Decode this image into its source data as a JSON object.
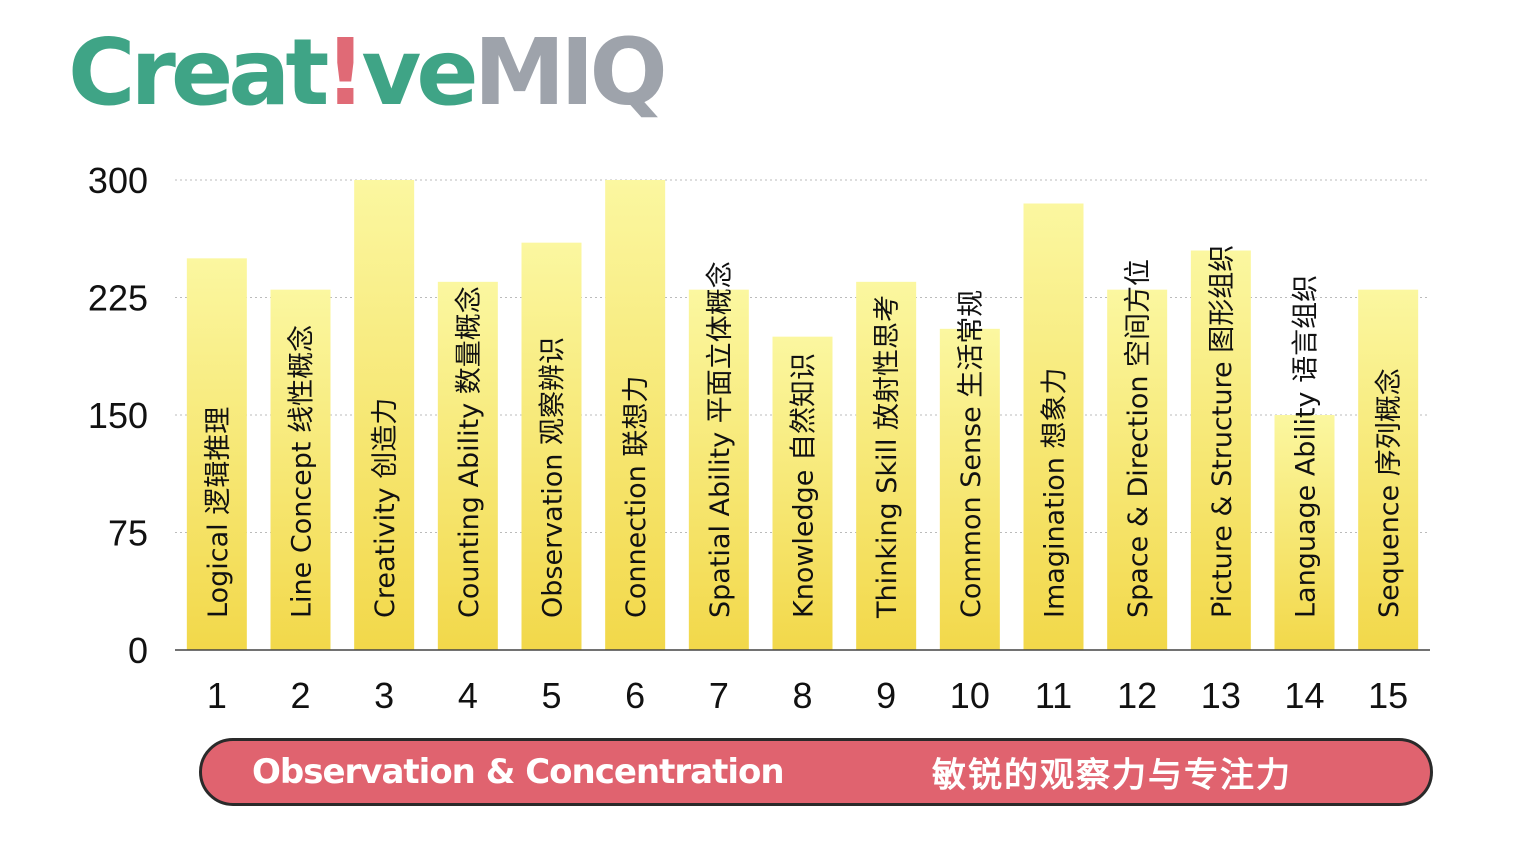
{
  "logo": {
    "part1": "Creat",
    "part2": "!",
    "part3": "ve",
    "part4": "MIQ"
  },
  "colors": {
    "logo_green": "#3fa486",
    "logo_pink": "#e06a76",
    "logo_gray": "#9ea3ab",
    "bar_top": "#fbf7a0",
    "bar_bottom": "#f2d84a",
    "banner": "#e0636f"
  },
  "chart_data": {
    "type": "bar",
    "categories": [
      "1",
      "2",
      "3",
      "4",
      "5",
      "6",
      "7",
      "8",
      "9",
      "10",
      "11",
      "12",
      "13",
      "14",
      "15"
    ],
    "bar_labels": [
      "Logical 逻辑推理",
      "Line Concept 线性概念",
      "Creativity 创造力",
      "Counting Ability 数量概念",
      "Observation 观察辨识",
      "Connection 联想力",
      "Spatial Ability 平面立体概念",
      "Knowledge 自然知识",
      "Thinking Skill 放射性思考",
      "Common Sense 生活常规",
      "Imagination 想象力",
      "Space & Direction 空间方位",
      "Picture & Structure 图形组织",
      "Language Ability 语言组织",
      "Sequence 序列概念"
    ],
    "values": [
      250,
      230,
      300,
      235,
      260,
      300,
      230,
      200,
      235,
      205,
      285,
      230,
      255,
      150,
      230
    ],
    "ylim": [
      0,
      300
    ],
    "yticks": [
      0,
      75,
      150,
      225,
      300
    ],
    "grid": true
  },
  "banner": {
    "left_text": "Observation & Concentration",
    "right_text": "敏锐的观察力与专注力"
  }
}
